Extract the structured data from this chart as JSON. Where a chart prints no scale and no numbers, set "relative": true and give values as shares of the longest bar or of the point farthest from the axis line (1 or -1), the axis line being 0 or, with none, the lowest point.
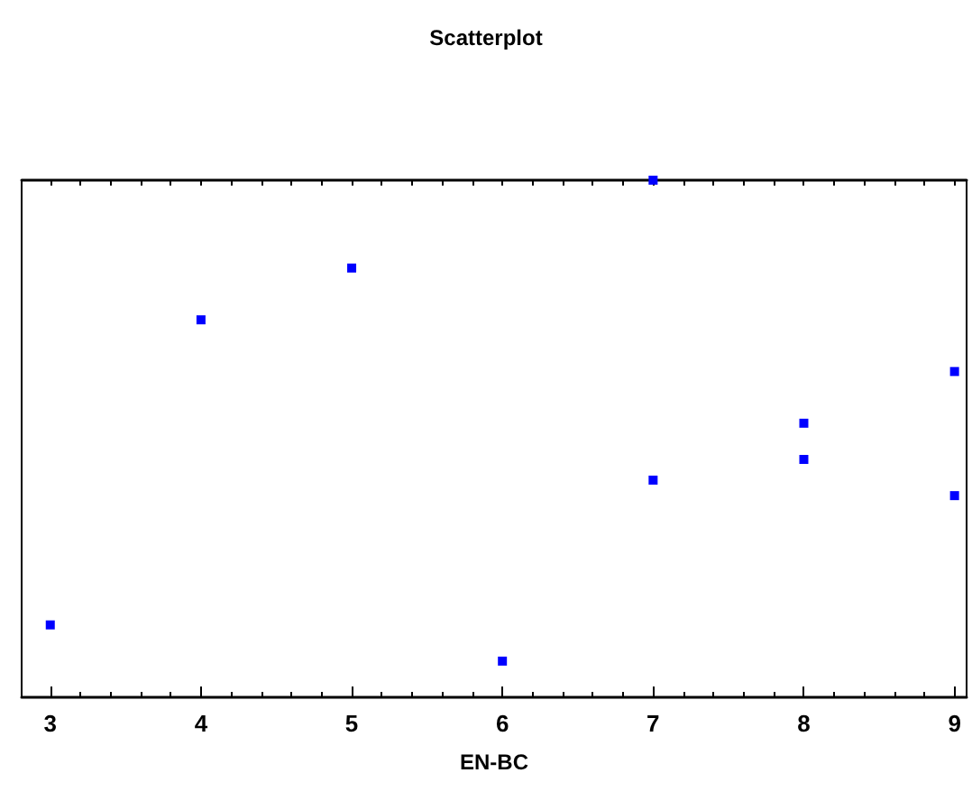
{
  "chart_data": {
    "type": "scatter",
    "title": "Scatterplot",
    "xlabel": "EN-BC",
    "relative": true,
    "xlim": [
      2.81,
      9.08
    ],
    "xticks": [
      3,
      4,
      5,
      6,
      7,
      8,
      9
    ],
    "grid": false,
    "marker": "square",
    "series": [
      {
        "color": "#0000ff",
        "x": [
          3,
          4,
          5,
          6,
          7,
          7,
          8,
          8,
          9,
          9
        ],
        "values": [
          0.14,
          0.73,
          0.83,
          0.07,
          1,
          0.42,
          0.53,
          0.46,
          0.63,
          0.39
        ]
      }
    ]
  }
}
